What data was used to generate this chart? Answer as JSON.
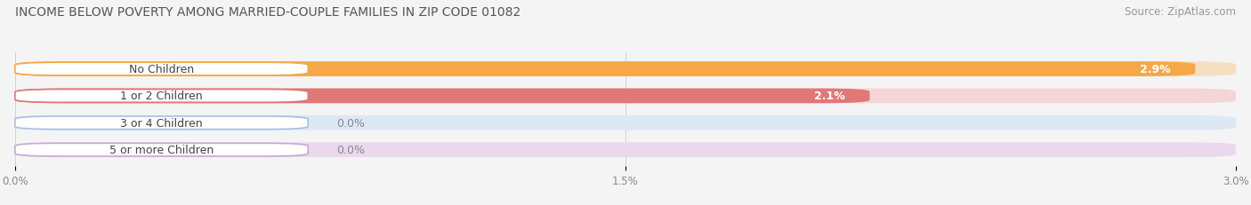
{
  "title": "INCOME BELOW POVERTY AMONG MARRIED-COUPLE FAMILIES IN ZIP CODE 01082",
  "source": "Source: ZipAtlas.com",
  "categories": [
    "No Children",
    "1 or 2 Children",
    "3 or 4 Children",
    "5 or more Children"
  ],
  "values": [
    2.9,
    2.1,
    0.0,
    0.0
  ],
  "bar_colors": [
    "#F5A848",
    "#E07878",
    "#A8BEE8",
    "#C8A8D5"
  ],
  "bar_bg_colors": [
    "#F5DFC0",
    "#F5D5D5",
    "#DDE8F5",
    "#EAD8EE"
  ],
  "xlim_max": 3.0,
  "xticks": [
    0.0,
    1.5,
    3.0
  ],
  "xticklabels": [
    "0.0%",
    "1.5%",
    "3.0%"
  ],
  "value_labels": [
    "2.9%",
    "2.1%",
    "0.0%",
    "0.0%"
  ],
  "bg_color": "#f4f4f4",
  "title_fontsize": 10,
  "source_fontsize": 8.5,
  "label_fontsize": 9,
  "value_fontsize": 9
}
